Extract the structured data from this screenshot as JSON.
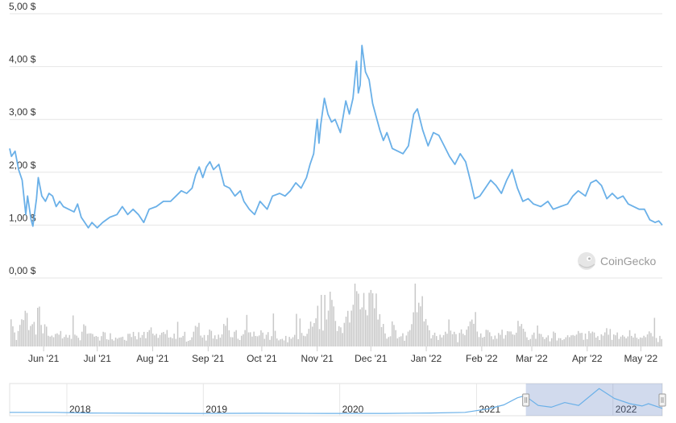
{
  "chart_data": {
    "type": "line",
    "y_tick_labels": [
      "5,00 $",
      "4,00 $",
      "3,00 $",
      "2,00 $",
      "1,00 $",
      "0,00 $"
    ],
    "y_tick_values": [
      5,
      4,
      3,
      2,
      1,
      0
    ],
    "ylim": [
      0,
      5
    ],
    "x_tick_labels": [
      "Jun '21",
      "Jul '21",
      "Aug '21",
      "Sep '21",
      "Oct '21",
      "Nov '21",
      "Dec '21",
      "Jan '22",
      "Feb '22",
      "Mar '22",
      "Apr '22",
      "May '22"
    ],
    "x_tick_dates": [
      "2021-06-01",
      "2021-07-01",
      "2021-08-01",
      "2021-09-01",
      "2021-10-01",
      "2021-11-01",
      "2021-12-01",
      "2022-01-01",
      "2022-02-01",
      "2022-03-01",
      "2022-04-01",
      "2022-05-01"
    ],
    "x_range": [
      "2021-05-13",
      "2022-05-13"
    ],
    "grid": true,
    "line_color": "#6ab0e8",
    "volume_color": "#c8c8c8",
    "series": [
      {
        "values": [
          [
            "2021-05-13",
            2.45
          ],
          [
            "2021-05-14",
            2.3
          ],
          [
            "2021-05-16",
            2.4
          ],
          [
            "2021-05-18",
            2.05
          ],
          [
            "2021-05-20",
            1.85
          ],
          [
            "2021-05-22",
            1.2
          ],
          [
            "2021-05-23",
            1.55
          ],
          [
            "2021-05-25",
            1.1
          ],
          [
            "2021-05-26",
            0.98
          ],
          [
            "2021-05-28",
            1.5
          ],
          [
            "2021-05-29",
            1.9
          ],
          [
            "2021-05-31",
            1.55
          ],
          [
            "2021-06-02",
            1.45
          ],
          [
            "2021-06-04",
            1.6
          ],
          [
            "2021-06-06",
            1.55
          ],
          [
            "2021-06-08",
            1.35
          ],
          [
            "2021-06-10",
            1.45
          ],
          [
            "2021-06-12",
            1.35
          ],
          [
            "2021-06-15",
            1.3
          ],
          [
            "2021-06-18",
            1.25
          ],
          [
            "2021-06-20",
            1.4
          ],
          [
            "2021-06-22",
            1.15
          ],
          [
            "2021-06-24",
            1.05
          ],
          [
            "2021-06-26",
            0.95
          ],
          [
            "2021-06-28",
            1.05
          ],
          [
            "2021-07-01",
            0.95
          ],
          [
            "2021-07-04",
            1.05
          ],
          [
            "2021-07-08",
            1.15
          ],
          [
            "2021-07-12",
            1.2
          ],
          [
            "2021-07-15",
            1.35
          ],
          [
            "2021-07-18",
            1.2
          ],
          [
            "2021-07-21",
            1.3
          ],
          [
            "2021-07-24",
            1.2
          ],
          [
            "2021-07-27",
            1.05
          ],
          [
            "2021-07-30",
            1.3
          ],
          [
            "2021-08-03",
            1.35
          ],
          [
            "2021-08-07",
            1.45
          ],
          [
            "2021-08-11",
            1.45
          ],
          [
            "2021-08-14",
            1.55
          ],
          [
            "2021-08-17",
            1.65
          ],
          [
            "2021-08-20",
            1.6
          ],
          [
            "2021-08-23",
            1.7
          ],
          [
            "2021-08-25",
            1.95
          ],
          [
            "2021-08-27",
            2.1
          ],
          [
            "2021-08-29",
            1.9
          ],
          [
            "2021-08-31",
            2.1
          ],
          [
            "2021-09-02",
            2.2
          ],
          [
            "2021-09-04",
            2.05
          ],
          [
            "2021-09-07",
            2.15
          ],
          [
            "2021-09-10",
            1.75
          ],
          [
            "2021-09-13",
            1.7
          ],
          [
            "2021-09-16",
            1.55
          ],
          [
            "2021-09-19",
            1.65
          ],
          [
            "2021-09-21",
            1.45
          ],
          [
            "2021-09-24",
            1.3
          ],
          [
            "2021-09-27",
            1.2
          ],
          [
            "2021-09-30",
            1.45
          ],
          [
            "2021-10-04",
            1.3
          ],
          [
            "2021-10-07",
            1.55
          ],
          [
            "2021-10-11",
            1.6
          ],
          [
            "2021-10-14",
            1.55
          ],
          [
            "2021-10-17",
            1.65
          ],
          [
            "2021-10-20",
            1.8
          ],
          [
            "2021-10-23",
            1.7
          ],
          [
            "2021-10-26",
            1.9
          ],
          [
            "2021-10-28",
            2.15
          ],
          [
            "2021-10-30",
            2.35
          ],
          [
            "2021-11-01",
            3.0
          ],
          [
            "2021-11-02",
            2.55
          ],
          [
            "2021-11-03",
            2.9
          ],
          [
            "2021-11-05",
            3.4
          ],
          [
            "2021-11-07",
            3.1
          ],
          [
            "2021-11-09",
            2.95
          ],
          [
            "2021-11-11",
            3.0
          ],
          [
            "2021-11-14",
            2.75
          ],
          [
            "2021-11-17",
            3.35
          ],
          [
            "2021-11-19",
            3.1
          ],
          [
            "2021-11-21",
            3.4
          ],
          [
            "2021-11-23",
            4.1
          ],
          [
            "2021-11-24",
            3.5
          ],
          [
            "2021-11-25",
            3.65
          ],
          [
            "2021-11-26",
            4.4
          ],
          [
            "2021-11-28",
            3.9
          ],
          [
            "2021-11-30",
            3.75
          ],
          [
            "2021-12-02",
            3.3
          ],
          [
            "2021-12-04",
            3.05
          ],
          [
            "2021-12-06",
            2.8
          ],
          [
            "2021-12-08",
            2.6
          ],
          [
            "2021-12-10",
            2.75
          ],
          [
            "2021-12-13",
            2.45
          ],
          [
            "2021-12-16",
            2.4
          ],
          [
            "2021-12-19",
            2.35
          ],
          [
            "2021-12-22",
            2.5
          ],
          [
            "2021-12-25",
            3.1
          ],
          [
            "2021-12-27",
            3.2
          ],
          [
            "2021-12-30",
            2.8
          ],
          [
            "2022-01-02",
            2.5
          ],
          [
            "2022-01-05",
            2.75
          ],
          [
            "2022-01-08",
            2.7
          ],
          [
            "2022-01-11",
            2.5
          ],
          [
            "2022-01-14",
            2.3
          ],
          [
            "2022-01-17",
            2.15
          ],
          [
            "2022-01-20",
            2.35
          ],
          [
            "2022-01-23",
            2.2
          ],
          [
            "2022-01-26",
            1.8
          ],
          [
            "2022-01-28",
            1.5
          ],
          [
            "2022-01-31",
            1.55
          ],
          [
            "2022-02-03",
            1.7
          ],
          [
            "2022-02-06",
            1.85
          ],
          [
            "2022-02-09",
            1.75
          ],
          [
            "2022-02-12",
            1.6
          ],
          [
            "2022-02-15",
            1.85
          ],
          [
            "2022-02-18",
            2.05
          ],
          [
            "2022-02-21",
            1.7
          ],
          [
            "2022-02-24",
            1.45
          ],
          [
            "2022-02-27",
            1.5
          ],
          [
            "2022-03-02",
            1.4
          ],
          [
            "2022-03-06",
            1.35
          ],
          [
            "2022-03-10",
            1.45
          ],
          [
            "2022-03-13",
            1.3
          ],
          [
            "2022-03-17",
            1.35
          ],
          [
            "2022-03-21",
            1.4
          ],
          [
            "2022-03-24",
            1.55
          ],
          [
            "2022-03-27",
            1.65
          ],
          [
            "2022-03-31",
            1.55
          ],
          [
            "2022-04-03",
            1.8
          ],
          [
            "2022-04-06",
            1.85
          ],
          [
            "2022-04-09",
            1.75
          ],
          [
            "2022-04-12",
            1.5
          ],
          [
            "2022-04-15",
            1.6
          ],
          [
            "2022-04-18",
            1.5
          ],
          [
            "2022-04-21",
            1.55
          ],
          [
            "2022-04-24",
            1.4
          ],
          [
            "2022-04-27",
            1.35
          ],
          [
            "2022-04-30",
            1.3
          ],
          [
            "2022-05-03",
            1.3
          ],
          [
            "2022-05-06",
            1.1
          ],
          [
            "2022-05-09",
            1.05
          ],
          [
            "2022-05-11",
            1.08
          ],
          [
            "2022-05-13",
            1.0
          ]
        ]
      }
    ],
    "navigator": {
      "tick_labels": [
        "2018",
        "2019",
        "2020",
        "2021",
        "2022"
      ],
      "tick_dates": [
        "2018-01-01",
        "2019-01-01",
        "2020-01-01",
        "2021-01-01",
        "2022-01-01"
      ],
      "x_range": [
        "2017-08-01",
        "2022-05-13"
      ],
      "selected_range": [
        "2021-05-13",
        "2022-05-13"
      ],
      "values": [
        [
          "2017-08-01",
          0.3
        ],
        [
          "2017-12-01",
          0.3
        ],
        [
          "2018-03-01",
          0.2
        ],
        [
          "2018-08-01",
          0.15
        ],
        [
          "2019-01-01",
          0.12
        ],
        [
          "2019-06-01",
          0.15
        ],
        [
          "2019-12-01",
          0.12
        ],
        [
          "2020-05-01",
          0.12
        ],
        [
          "2020-09-01",
          0.2
        ],
        [
          "2020-12-01",
          0.3
        ],
        [
          "2021-02-01",
          0.9
        ],
        [
          "2021-03-15",
          1.6
        ],
        [
          "2021-04-20",
          2.8
        ],
        [
          "2021-05-10",
          3.2
        ],
        [
          "2021-06-15",
          1.5
        ],
        [
          "2021-07-20",
          1.2
        ],
        [
          "2021-08-25",
          2.0
        ],
        [
          "2021-10-01",
          1.5
        ],
        [
          "2021-11-25",
          4.4
        ],
        [
          "2022-01-05",
          2.7
        ],
        [
          "2022-02-15",
          1.8
        ],
        [
          "2022-03-20",
          1.4
        ],
        [
          "2022-04-06",
          1.8
        ],
        [
          "2022-05-13",
          1.0
        ]
      ]
    }
  },
  "brand": {
    "name": "CoinGecko",
    "icon": "gecko-logo-icon"
  }
}
